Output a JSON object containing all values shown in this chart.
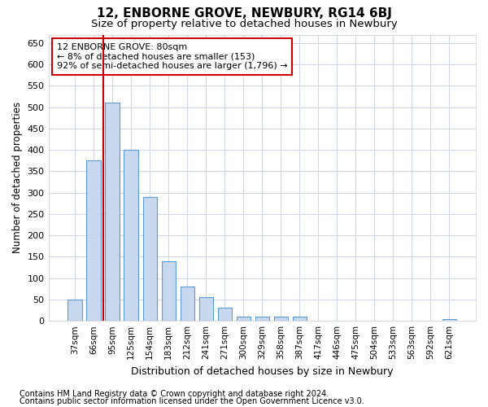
{
  "title": "12, ENBORNE GROVE, NEWBURY, RG14 6BJ",
  "subtitle": "Size of property relative to detached houses in Newbury",
  "xlabel": "Distribution of detached houses by size in Newbury",
  "ylabel": "Number of detached properties",
  "categories": [
    "37sqm",
    "66sqm",
    "95sqm",
    "125sqm",
    "154sqm",
    "183sqm",
    "212sqm",
    "241sqm",
    "271sqm",
    "300sqm",
    "329sqm",
    "358sqm",
    "387sqm",
    "417sqm",
    "446sqm",
    "475sqm",
    "504sqm",
    "533sqm",
    "563sqm",
    "592sqm",
    "621sqm"
  ],
  "values": [
    50,
    375,
    510,
    400,
    290,
    140,
    80,
    55,
    30,
    10,
    10,
    10,
    10,
    0,
    0,
    0,
    0,
    0,
    0,
    0,
    5
  ],
  "bar_color": "#c8d8ee",
  "bar_edge_color": "#5b9bd5",
  "red_line_x": 1.5,
  "annotation_line1": "12 ENBORNE GROVE: 80sqm",
  "annotation_line2": "← 8% of detached houses are smaller (153)",
  "annotation_line3": "92% of semi-detached houses are larger (1,796) →",
  "annotation_box_color": "#ffffff",
  "annotation_box_edge_color": "#cc0000",
  "ylim": [
    0,
    670
  ],
  "yticks": [
    0,
    50,
    100,
    150,
    200,
    250,
    300,
    350,
    400,
    450,
    500,
    550,
    600,
    650
  ],
  "footer_line1": "Contains HM Land Registry data © Crown copyright and database right 2024.",
  "footer_line2": "Contains public sector information licensed under the Open Government Licence v3.0.",
  "bg_color": "#ffffff",
  "plot_bg_color": "#ffffff",
  "grid_color": "#d0d8e8",
  "title_fontsize": 11,
  "subtitle_fontsize": 9.5,
  "footer_fontsize": 7,
  "bar_width": 0.75
}
